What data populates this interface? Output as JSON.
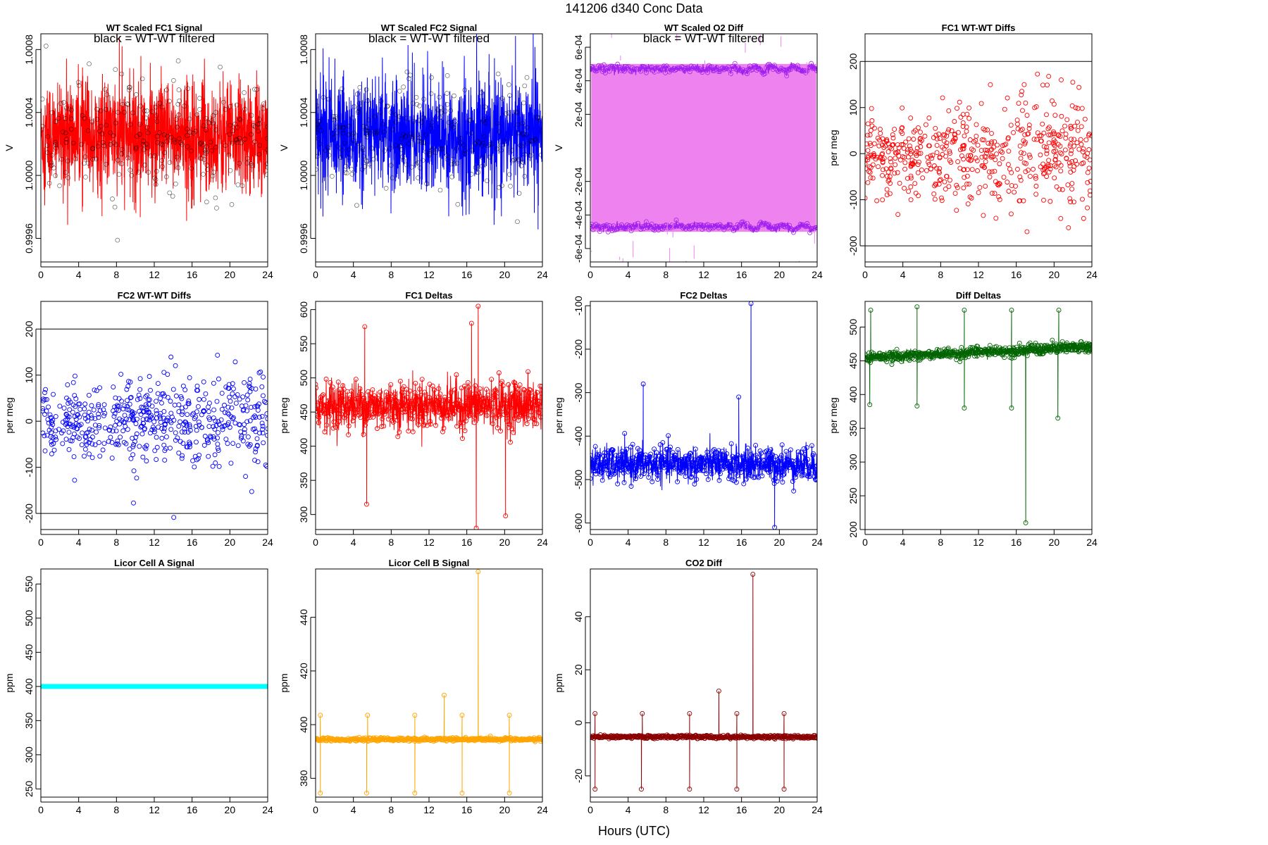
{
  "figure": {
    "title": "141206   d340   Conc Data",
    "xlabel": "Hours (UTC)"
  },
  "chart_data": [
    {
      "id": "wt-fc1",
      "type": "line",
      "title": "WT Scaled FC1 Signal",
      "subtitle": "black = WT-WT filtered",
      "ylabel": "V",
      "xlim": [
        0,
        24
      ],
      "ylim": [
        0.99945,
        1.0009
      ],
      "xticks": [
        0,
        4,
        8,
        12,
        16,
        20,
        24
      ],
      "yticks": [
        0.9996,
        1.0,
        1.0004,
        1.0008
      ],
      "ytick_labels": [
        "0.9996",
        "1.0000",
        "1.0004",
        "1.0008"
      ],
      "color": "#ff0000",
      "noise": {
        "base": 1.00025,
        "spread": 0.00022,
        "spikes": 0.0006
      },
      "overlay": {
        "color": "#000000",
        "note": "black = WT-WT filtered"
      }
    },
    {
      "id": "wt-fc2",
      "type": "line",
      "title": "WT Scaled FC2 Signal",
      "subtitle": "black = WT-WT filtered",
      "ylabel": "V",
      "xlim": [
        0,
        24
      ],
      "ylim": [
        0.99945,
        1.0009
      ],
      "xticks": [
        0,
        4,
        8,
        12,
        16,
        20,
        24
      ],
      "yticks": [
        0.9996,
        1.0,
        1.0004,
        1.0008
      ],
      "ytick_labels": [
        "0.9996",
        "1.0000",
        "1.0004",
        "1.0008"
      ],
      "color": "#0000ff",
      "noise": {
        "base": 1.00025,
        "spread": 0.00022,
        "spikes": 0.0006
      }
    },
    {
      "id": "wt-o2diff",
      "type": "band",
      "title": "WT Scaled O2 Diff",
      "subtitle": "black = WT-WT filtered",
      "ylabel": "V",
      "xlim": [
        0,
        24
      ],
      "ylim": [
        -0.00068,
        0.00068
      ],
      "xticks": [
        0,
        4,
        8,
        12,
        16,
        20,
        24
      ],
      "yticks": [
        -0.0006,
        -0.0004,
        -0.0002,
        0.0002,
        0.0004,
        0.0006
      ],
      "ytick_labels": [
        "-6e-04",
        "-4e-04",
        "-2e-04",
        "2e-04",
        "4e-04",
        "6e-04"
      ],
      "color": "#ee82ee",
      "edge_color": "#a020f0",
      "upper": 0.00047,
      "lower": -0.00047
    },
    {
      "id": "fc1-wtwt",
      "type": "scatter",
      "title": "FC1 WT-WT Diffs",
      "ylabel": "per meg",
      "xlim": [
        0,
        24
      ],
      "ylim": [
        -235,
        260
      ],
      "xticks": [
        0,
        4,
        8,
        12,
        16,
        20,
        24
      ],
      "yticks": [
        -200,
        -100,
        0,
        100,
        200
      ],
      "ytick_labels": [
        "-200",
        "-100",
        "0",
        "100",
        "200"
      ],
      "hlines": [
        200,
        -200
      ],
      "color": "#ff0000",
      "cloud": {
        "n": 560,
        "sd": 55
      }
    },
    {
      "id": "fc2-wtwt",
      "type": "scatter",
      "title": "FC2 WT-WT Diffs",
      "ylabel": "per meg",
      "xlim": [
        0,
        24
      ],
      "ylim": [
        -235,
        260
      ],
      "xticks": [
        0,
        4,
        8,
        12,
        16,
        20,
        24
      ],
      "yticks": [
        -200,
        -100,
        0,
        100,
        200
      ],
      "ytick_labels": [
        "-200",
        "-100",
        "0",
        "100",
        "200"
      ],
      "hlines": [
        200,
        -200
      ],
      "color": "#0000ff",
      "cloud": {
        "n": 560,
        "sd": 45
      }
    },
    {
      "id": "fc1-deltas",
      "type": "line",
      "title": "FC1 Deltas",
      "ylabel": "per meg",
      "xlim": [
        0,
        24
      ],
      "ylim": [
        278,
        612
      ],
      "xticks": [
        0,
        4,
        8,
        12,
        16,
        20,
        24
      ],
      "yticks": [
        300,
        350,
        400,
        450,
        500,
        550,
        600
      ],
      "ytick_labels": [
        "300",
        "350",
        "400",
        "450",
        "500",
        "550",
        "600"
      ],
      "color": "#ff0000",
      "series": {
        "base": 460,
        "sd": 18,
        "spikes": [
          [
            5.4,
            315
          ],
          [
            5.2,
            575
          ],
          [
            16.5,
            580
          ],
          [
            17.2,
            605
          ],
          [
            17.0,
            280
          ],
          [
            20.1,
            298
          ]
        ]
      }
    },
    {
      "id": "fc2-deltas",
      "type": "line",
      "title": "FC2 Deltas",
      "ylabel": "per meg",
      "xlim": [
        0,
        24
      ],
      "ylim": [
        -615,
        -90
      ],
      "xticks": [
        0,
        4,
        8,
        12,
        16,
        20,
        24
      ],
      "yticks": [
        -600,
        -500,
        -400,
        -300,
        -200,
        -100
      ],
      "ytick_labels": [
        "-600",
        "-500",
        "-400",
        "-300",
        "-200",
        "-100"
      ],
      "color": "#0000ff",
      "series": {
        "base": -465,
        "sd": 20,
        "spikes": [
          [
            5.6,
            -280
          ],
          [
            17.0,
            -95
          ],
          [
            19.5,
            -610
          ],
          [
            15.7,
            -310
          ]
        ]
      }
    },
    {
      "id": "diff-deltas",
      "type": "line",
      "title": "Diff Deltas",
      "ylabel": "per meg",
      "xlim": [
        0,
        24
      ],
      "ylim": [
        200,
        538
      ],
      "xticks": [
        0,
        4,
        8,
        12,
        16,
        20,
        24
      ],
      "yticks": [
        200,
        250,
        300,
        350,
        400,
        450,
        500
      ],
      "ytick_labels": [
        "200",
        "250",
        "300",
        "350",
        "400",
        "450",
        "500"
      ],
      "color": "#006400",
      "series": {
        "base": 455,
        "trend": 15,
        "sd": 4,
        "spikes": [
          [
            0.6,
            525
          ],
          [
            0.5,
            385
          ],
          [
            5.5,
            530
          ],
          [
            5.5,
            383
          ],
          [
            10.5,
            525
          ],
          [
            10.5,
            380
          ],
          [
            15.5,
            525
          ],
          [
            15.5,
            380
          ],
          [
            17.0,
            210
          ],
          [
            20.5,
            525
          ],
          [
            20.4,
            365
          ]
        ]
      }
    },
    {
      "id": "licor-a",
      "type": "line",
      "title": "Licor Cell A Signal",
      "ylabel": "ppm",
      "xlim": [
        0,
        24
      ],
      "ylim": [
        238,
        572
      ],
      "xticks": [
        0,
        4,
        8,
        12,
        16,
        20,
        24
      ],
      "yticks": [
        250,
        300,
        350,
        400,
        450,
        500,
        550
      ],
      "ytick_labels": [
        "250",
        "300",
        "350",
        "400",
        "450",
        "500",
        "550"
      ],
      "color": "#00ffff",
      "constant": 400
    },
    {
      "id": "licor-b",
      "type": "line",
      "title": "Licor Cell B Signal",
      "ylabel": "ppm",
      "xlim": [
        0,
        24
      ],
      "ylim": [
        373,
        458
      ],
      "xticks": [
        0,
        4,
        8,
        12,
        16,
        20,
        24
      ],
      "yticks": [
        380,
        400,
        420,
        440
      ],
      "ytick_labels": [
        "380",
        "400",
        "420",
        "440"
      ],
      "color": "#ffa500",
      "series": {
        "base": 394.5,
        "sd": 0.3,
        "spikes": [
          [
            0.5,
            403.5
          ],
          [
            0.5,
            374.5
          ],
          [
            5.5,
            403.5
          ],
          [
            5.4,
            374.5
          ],
          [
            10.5,
            403.5
          ],
          [
            10.5,
            374.5
          ],
          [
            13.6,
            411
          ],
          [
            15.5,
            403.5
          ],
          [
            15.5,
            374.5
          ],
          [
            17.2,
            457
          ],
          [
            20.5,
            403.5
          ],
          [
            20.5,
            374.5
          ]
        ]
      }
    },
    {
      "id": "co2-diff",
      "type": "line",
      "title": "CO2 Diff",
      "ylabel": "ppm",
      "xlim": [
        0,
        24
      ],
      "ylim": [
        -28,
        58
      ],
      "xticks": [
        0,
        4,
        8,
        12,
        16,
        20,
        24
      ],
      "yticks": [
        -20,
        0,
        20,
        40
      ],
      "ytick_labels": [
        "-20",
        "0",
        "20",
        "40"
      ],
      "color": "#8b0000",
      "series": {
        "base": -5.3,
        "sd": 0.3,
        "spikes": [
          [
            0.5,
            3.5
          ],
          [
            0.5,
            -25
          ],
          [
            5.5,
            3.5
          ],
          [
            5.4,
            -25
          ],
          [
            10.5,
            3.5
          ],
          [
            10.5,
            -25
          ],
          [
            13.6,
            12
          ],
          [
            15.5,
            3.5
          ],
          [
            15.5,
            -25
          ],
          [
            17.2,
            56
          ],
          [
            20.5,
            3.5
          ],
          [
            20.5,
            -25
          ]
        ]
      }
    }
  ]
}
